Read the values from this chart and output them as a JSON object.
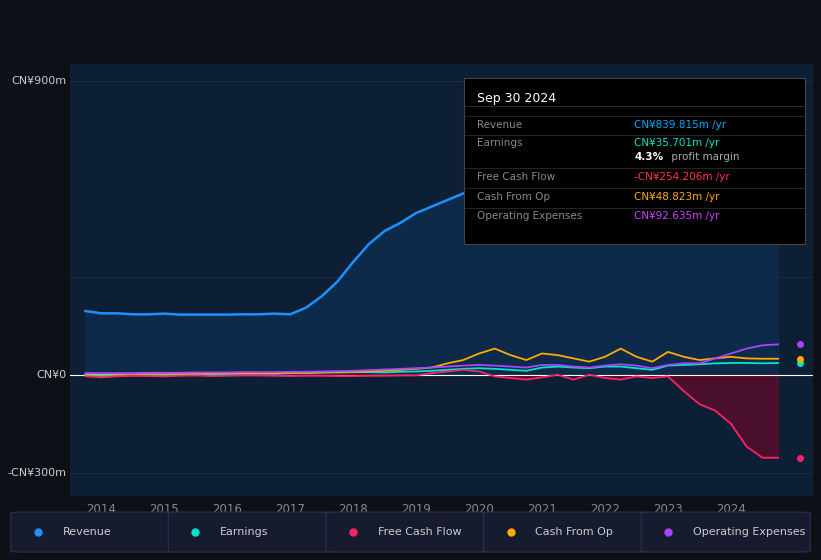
{
  "bg_color": "#0d1117",
  "plot_bg_color": "#0d1f35",
  "grid_color": "#1e3050",
  "zero_line_color": "#ffffff",
  "ylabel_900": "CN¥900m",
  "ylabel_0": "CN¥0",
  "ylabel_n300": "-CN¥300m",
  "ylim": [
    -370,
    950
  ],
  "xlim": [
    2013.5,
    2025.3
  ],
  "xticks": [
    2014,
    2015,
    2016,
    2017,
    2018,
    2019,
    2020,
    2021,
    2022,
    2023,
    2024
  ],
  "info_box": {
    "title": "Sep 30 2024",
    "rows": [
      {
        "label": "Revenue",
        "value": "CN¥839.815m /yr",
        "value_color": "#00aaff"
      },
      {
        "label": "Earnings",
        "value": "CN¥35.701m /yr",
        "value_color": "#00e5cc"
      },
      {
        "label": "",
        "value": "4.3%",
        "suffix": " profit margin",
        "value_color": "#ffffff"
      },
      {
        "label": "Free Cash Flow",
        "value": "-CN¥254.206m /yr",
        "value_color": "#ff3355"
      },
      {
        "label": "Cash From Op",
        "value": "CN¥48.823m /yr",
        "value_color": "#ffaa00"
      },
      {
        "label": "Operating Expenses",
        "value": "CN¥92.635m /yr",
        "value_color": "#cc44ff"
      }
    ]
  },
  "series": {
    "revenue": {
      "color": "#1e90ff",
      "fill_color": "#0d2a4a",
      "label": "Revenue",
      "data_x": [
        2013.75,
        2014.0,
        2014.25,
        2014.5,
        2014.75,
        2015.0,
        2015.25,
        2015.5,
        2015.75,
        2016.0,
        2016.25,
        2016.5,
        2016.75,
        2017.0,
        2017.25,
        2017.5,
        2017.75,
        2018.0,
        2018.25,
        2018.5,
        2018.75,
        2019.0,
        2019.25,
        2019.5,
        2019.75,
        2020.0,
        2020.25,
        2020.5,
        2020.75,
        2021.0,
        2021.25,
        2021.5,
        2021.75,
        2022.0,
        2022.25,
        2022.5,
        2022.75,
        2023.0,
        2023.25,
        2023.5,
        2023.75,
        2024.0,
        2024.25,
        2024.5,
        2024.75
      ],
      "data_y": [
        195,
        188,
        188,
        185,
        185,
        187,
        184,
        184,
        184,
        184,
        185,
        185,
        187,
        185,
        205,
        240,
        285,
        345,
        400,
        440,
        465,
        495,
        515,
        535,
        555,
        565,
        540,
        515,
        495,
        505,
        495,
        515,
        525,
        545,
        535,
        525,
        515,
        505,
        495,
        525,
        605,
        705,
        775,
        825,
        840
      ]
    },
    "earnings": {
      "color": "#00e5cc",
      "label": "Earnings",
      "data_x": [
        2013.75,
        2014.0,
        2014.25,
        2014.5,
        2014.75,
        2015.0,
        2015.25,
        2015.5,
        2015.75,
        2016.0,
        2016.25,
        2016.5,
        2016.75,
        2017.0,
        2017.25,
        2017.5,
        2017.75,
        2018.0,
        2018.25,
        2018.5,
        2018.75,
        2019.0,
        2019.25,
        2019.5,
        2019.75,
        2020.0,
        2020.25,
        2020.5,
        2020.75,
        2021.0,
        2021.25,
        2021.5,
        2021.75,
        2022.0,
        2022.25,
        2022.5,
        2022.75,
        2023.0,
        2023.25,
        2023.5,
        2023.75,
        2024.0,
        2024.25,
        2024.5,
        2024.75
      ],
      "data_y": [
        -2,
        -4,
        -2,
        -2,
        -1,
        -1,
        0,
        1,
        2,
        2,
        3,
        3,
        3,
        5,
        5,
        7,
        7,
        8,
        8,
        7,
        9,
        10,
        12,
        15,
        18,
        20,
        18,
        15,
        12,
        22,
        25,
        22,
        20,
        25,
        25,
        20,
        15,
        28,
        30,
        32,
        35,
        36,
        36,
        35,
        36
      ]
    },
    "free_cash_flow": {
      "color": "#ff2266",
      "label": "Free Cash Flow",
      "data_x": [
        2013.75,
        2014.0,
        2014.25,
        2014.5,
        2014.75,
        2015.0,
        2015.25,
        2015.5,
        2015.75,
        2016.0,
        2016.25,
        2016.5,
        2016.75,
        2017.0,
        2017.25,
        2017.5,
        2017.75,
        2018.0,
        2018.25,
        2018.5,
        2018.75,
        2019.0,
        2019.25,
        2019.5,
        2019.75,
        2020.0,
        2020.25,
        2020.5,
        2020.75,
        2021.0,
        2021.25,
        2021.5,
        2021.75,
        2022.0,
        2022.25,
        2022.5,
        2022.75,
        2023.0,
        2023.25,
        2023.5,
        2023.75,
        2024.0,
        2024.25,
        2024.5,
        2024.75
      ],
      "data_y": [
        -5,
        -8,
        -5,
        -3,
        -4,
        -5,
        -3,
        -2,
        -4,
        -3,
        -2,
        -2,
        -3,
        -4,
        -3,
        -3,
        -4,
        -4,
        -3,
        -3,
        -2,
        -2,
        5,
        10,
        15,
        10,
        -5,
        -10,
        -15,
        -8,
        0,
        -15,
        0,
        -10,
        -15,
        -5,
        -10,
        -5,
        -50,
        -90,
        -110,
        -150,
        -220,
        -254,
        -254
      ]
    },
    "cash_from_op": {
      "color": "#ffaa00",
      "label": "Cash From Op",
      "data_x": [
        2013.75,
        2014.0,
        2014.25,
        2014.5,
        2014.75,
        2015.0,
        2015.25,
        2015.5,
        2015.75,
        2016.0,
        2016.25,
        2016.5,
        2016.75,
        2017.0,
        2017.25,
        2017.5,
        2017.75,
        2018.0,
        2018.25,
        2018.5,
        2018.75,
        2019.0,
        2019.25,
        2019.5,
        2019.75,
        2020.0,
        2020.25,
        2020.5,
        2020.75,
        2021.0,
        2021.25,
        2021.5,
        2021.75,
        2022.0,
        2022.25,
        2022.5,
        2022.75,
        2023.0,
        2023.25,
        2023.5,
        2023.75,
        2024.0,
        2024.25,
        2024.5,
        2024.75
      ],
      "data_y": [
        2,
        2,
        2,
        3,
        3,
        3,
        3,
        4,
        4,
        5,
        5,
        5,
        5,
        6,
        6,
        7,
        8,
        8,
        10,
        12,
        15,
        18,
        22,
        35,
        45,
        65,
        80,
        60,
        45,
        65,
        60,
        50,
        40,
        55,
        80,
        55,
        40,
        70,
        55,
        45,
        50,
        55,
        50,
        49,
        49
      ]
    },
    "operating_expenses": {
      "color": "#aa44ff",
      "label": "Operating Expenses",
      "data_x": [
        2013.75,
        2014.0,
        2014.25,
        2014.5,
        2014.75,
        2015.0,
        2015.25,
        2015.5,
        2015.75,
        2016.0,
        2016.25,
        2016.5,
        2016.75,
        2017.0,
        2017.25,
        2017.5,
        2017.75,
        2018.0,
        2018.25,
        2018.5,
        2018.75,
        2019.0,
        2019.25,
        2019.5,
        2019.75,
        2020.0,
        2020.25,
        2020.5,
        2020.75,
        2021.0,
        2021.25,
        2021.5,
        2021.75,
        2022.0,
        2022.25,
        2022.5,
        2022.75,
        2023.0,
        2023.25,
        2023.5,
        2023.75,
        2024.0,
        2024.25,
        2024.5,
        2024.75
      ],
      "data_y": [
        5,
        5,
        5,
        5,
        6,
        6,
        6,
        7,
        7,
        7,
        8,
        8,
        8,
        9,
        9,
        10,
        11,
        12,
        14,
        16,
        18,
        20,
        22,
        25,
        28,
        30,
        28,
        25,
        22,
        30,
        30,
        25,
        22,
        28,
        32,
        28,
        20,
        30,
        35,
        35,
        50,
        65,
        80,
        90,
        93
      ]
    }
  },
  "legend": [
    {
      "label": "Revenue",
      "color": "#1e90ff"
    },
    {
      "label": "Earnings",
      "color": "#00e5cc"
    },
    {
      "label": "Free Cash Flow",
      "color": "#ff2266"
    },
    {
      "label": "Cash From Op",
      "color": "#ffaa00"
    },
    {
      "label": "Operating Expenses",
      "color": "#aa44ff"
    }
  ]
}
